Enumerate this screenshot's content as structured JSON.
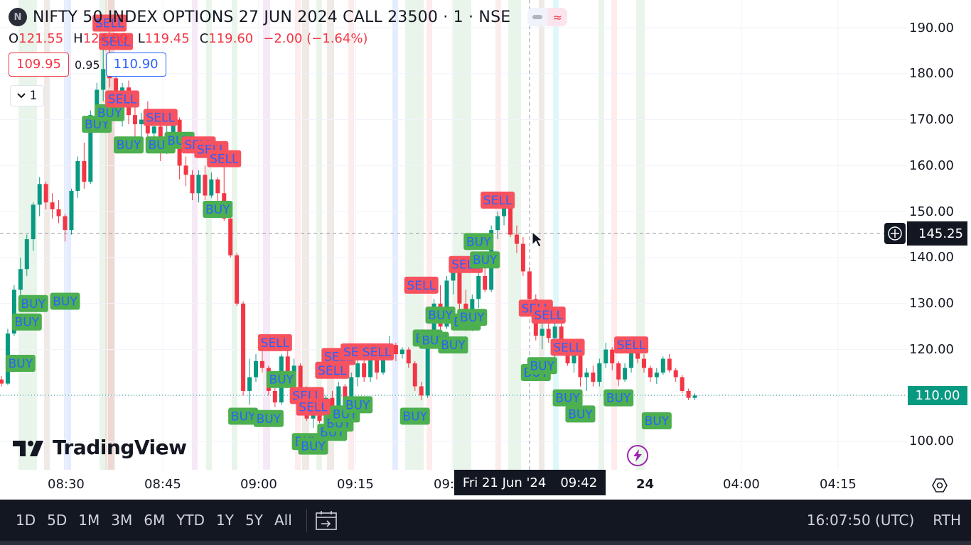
{
  "header": {
    "symbol_badge": "N",
    "title": "NIFTY 50 INDEX OPTIONS 27 JUN 2024 CALL 23500 · 1 · NSE",
    "toggle_icons": [
      "minus-icon",
      "wave-icon"
    ]
  },
  "ohlc": {
    "o_label": "O",
    "o": "121.55",
    "h_label": "H",
    "h": "124.00",
    "l_label": "L",
    "l": "119.45",
    "c_label": "C",
    "c": "119.60",
    "change": "−2.00 (−1.64%)"
  },
  "quote": {
    "sell": "109.95",
    "spread": "0.95",
    "buy": "110.90"
  },
  "collapse": {
    "label": "1",
    "icon": "chevron-down-icon"
  },
  "logo": {
    "text": "TradingView",
    "icon": "tradingview-logo-icon"
  },
  "price_axis": {
    "labels": [
      "190.00",
      "180.00",
      "170.00",
      "160.00",
      "150.00",
      "140.00",
      "130.00",
      "120.00",
      "110.00",
      "100.00"
    ],
    "crosshair_price": "145.25",
    "last_price": "110.00"
  },
  "time_axis": {
    "labels": [
      "08:30",
      "08:45",
      "09:00",
      "09:15",
      "09:",
      "24",
      "04:00",
      "04:15"
    ],
    "crosshair_date": "Fri 21 Jun '24",
    "crosshair_time": "09:42"
  },
  "ranges": [
    "1D",
    "5D",
    "1M",
    "3M",
    "6M",
    "YTD",
    "1Y",
    "5Y",
    "All"
  ],
  "status": {
    "clock": "16:07:50 (UTC)",
    "session": "RTH"
  },
  "colors": {
    "up": "#089981",
    "down": "#f23645",
    "buy_label": "#4caf50",
    "sell_label": "#f7525f",
    "label_text": "#2962ff"
  },
  "chart_data": {
    "type": "candlestick",
    "ylim": [
      94,
      196
    ],
    "signal_buy_text": "BUY",
    "signal_sell_text": "SELL",
    "candles": [
      {
        "o": 113.5,
        "h": 114.2,
        "l": 112.0,
        "c": 112.6
      },
      {
        "o": 112.6,
        "h": 124.5,
        "l": 112.3,
        "c": 123.5
      },
      {
        "o": 123.5,
        "h": 134.0,
        "l": 123.0,
        "c": 133.0
      },
      {
        "o": 133.0,
        "h": 140.0,
        "l": 130.5,
        "c": 137.5
      },
      {
        "o": 137.5,
        "h": 145.0,
        "l": 136.0,
        "c": 144.0
      },
      {
        "o": 144.0,
        "h": 152.0,
        "l": 141.5,
        "c": 151.5
      },
      {
        "o": 151.5,
        "h": 157.5,
        "l": 149.0,
        "c": 156.0
      },
      {
        "o": 156.0,
        "h": 156.5,
        "l": 150.5,
        "c": 152.0
      },
      {
        "o": 152.0,
        "h": 154.0,
        "l": 148.5,
        "c": 150.5
      },
      {
        "o": 150.5,
        "h": 152.5,
        "l": 147.5,
        "c": 149.0
      },
      {
        "o": 149.0,
        "h": 149.5,
        "l": 143.5,
        "c": 146.0
      },
      {
        "o": 146.0,
        "h": 155.0,
        "l": 145.0,
        "c": 154.5
      },
      {
        "o": 154.5,
        "h": 162.0,
        "l": 153.0,
        "c": 161.0
      },
      {
        "o": 161.0,
        "h": 165.0,
        "l": 155.0,
        "c": 156.5
      },
      {
        "o": 156.5,
        "h": 172.0,
        "l": 156.0,
        "c": 171.0
      },
      {
        "o": 171.0,
        "h": 178.0,
        "l": 169.0,
        "c": 176.5
      },
      {
        "o": 176.5,
        "h": 185.5,
        "l": 174.0,
        "c": 181.0
      },
      {
        "o": 181.0,
        "h": 190.0,
        "l": 177.0,
        "c": 179.0
      },
      {
        "o": 179.0,
        "h": 181.0,
        "l": 170.0,
        "c": 173.0
      },
      {
        "o": 173.0,
        "h": 178.0,
        "l": 168.5,
        "c": 177.0
      },
      {
        "o": 177.0,
        "h": 178.5,
        "l": 169.0,
        "c": 171.0
      },
      {
        "o": 171.0,
        "h": 173.0,
        "l": 164.0,
        "c": 169.0
      },
      {
        "o": 169.0,
        "h": 171.5,
        "l": 166.0,
        "c": 170.0
      },
      {
        "o": 170.0,
        "h": 174.0,
        "l": 165.5,
        "c": 167.0
      },
      {
        "o": 167.0,
        "h": 170.0,
        "l": 163.0,
        "c": 168.5
      },
      {
        "o": 168.5,
        "h": 172.0,
        "l": 161.0,
        "c": 163.0
      },
      {
        "o": 163.0,
        "h": 169.5,
        "l": 162.5,
        "c": 167.0
      },
      {
        "o": 167.0,
        "h": 171.0,
        "l": 165.0,
        "c": 170.0
      },
      {
        "o": 170.0,
        "h": 170.5,
        "l": 157.0,
        "c": 160.0
      },
      {
        "o": 160.0,
        "h": 162.0,
        "l": 155.5,
        "c": 158.0
      },
      {
        "o": 158.0,
        "h": 159.0,
        "l": 152.5,
        "c": 154.0
      },
      {
        "o": 154.0,
        "h": 159.0,
        "l": 152.0,
        "c": 158.0
      },
      {
        "o": 158.0,
        "h": 160.0,
        "l": 152.5,
        "c": 153.5
      },
      {
        "o": 153.5,
        "h": 158.5,
        "l": 153.0,
        "c": 157.0
      },
      {
        "o": 157.0,
        "h": 157.5,
        "l": 152.0,
        "c": 154.0
      },
      {
        "o": 154.0,
        "h": 160.0,
        "l": 148.0,
        "c": 148.5
      },
      {
        "o": 148.5,
        "h": 149.0,
        "l": 140.0,
        "c": 140.5
      },
      {
        "o": 140.5,
        "h": 141.0,
        "l": 129.5,
        "c": 130.0
      },
      {
        "o": 130.0,
        "h": 130.5,
        "l": 110.0,
        "c": 111.0
      },
      {
        "o": 111.0,
        "h": 118.0,
        "l": 108.0,
        "c": 114.0
      },
      {
        "o": 114.0,
        "h": 119.0,
        "l": 113.0,
        "c": 117.5
      },
      {
        "o": 117.5,
        "h": 120.0,
        "l": 115.0,
        "c": 116.0
      },
      {
        "o": 116.0,
        "h": 116.5,
        "l": 110.0,
        "c": 111.0
      },
      {
        "o": 111.0,
        "h": 112.0,
        "l": 107.5,
        "c": 108.5
      },
      {
        "o": 108.5,
        "h": 119.0,
        "l": 108.0,
        "c": 118.5
      },
      {
        "o": 118.5,
        "h": 121.0,
        "l": 113.0,
        "c": 114.5
      },
      {
        "o": 114.5,
        "h": 118.0,
        "l": 109.0,
        "c": 116.5
      },
      {
        "o": 116.5,
        "h": 117.0,
        "l": 110.0,
        "c": 111.5
      },
      {
        "o": 111.5,
        "h": 112.0,
        "l": 104.5,
        "c": 105.0
      },
      {
        "o": 105.0,
        "h": 110.0,
        "l": 103.0,
        "c": 109.0
      },
      {
        "o": 109.0,
        "h": 109.5,
        "l": 104.0,
        "c": 104.5
      },
      {
        "o": 104.5,
        "h": 110.0,
        "l": 104.0,
        "c": 109.5
      },
      {
        "o": 109.5,
        "h": 111.0,
        "l": 106.0,
        "c": 107.0
      },
      {
        "o": 107.0,
        "h": 113.0,
        "l": 106.5,
        "c": 112.0
      },
      {
        "o": 112.0,
        "h": 112.5,
        "l": 108.0,
        "c": 109.0
      },
      {
        "o": 109.0,
        "h": 115.0,
        "l": 108.0,
        "c": 114.0
      },
      {
        "o": 114.0,
        "h": 118.0,
        "l": 112.0,
        "c": 117.0
      },
      {
        "o": 117.0,
        "h": 121.0,
        "l": 113.0,
        "c": 114.0
      },
      {
        "o": 114.0,
        "h": 119.5,
        "l": 113.0,
        "c": 118.5
      },
      {
        "o": 118.5,
        "h": 119.0,
        "l": 113.5,
        "c": 115.0
      },
      {
        "o": 115.0,
        "h": 121.0,
        "l": 114.5,
        "c": 120.0
      },
      {
        "o": 120.0,
        "h": 123.0,
        "l": 118.5,
        "c": 121.0
      },
      {
        "o": 121.0,
        "h": 121.5,
        "l": 117.5,
        "c": 119.0
      },
      {
        "o": 119.0,
        "h": 120.5,
        "l": 118.0,
        "c": 120.0
      },
      {
        "o": 120.0,
        "h": 120.5,
        "l": 116.0,
        "c": 117.0
      },
      {
        "o": 117.0,
        "h": 117.5,
        "l": 111.0,
        "c": 112.0
      },
      {
        "o": 112.0,
        "h": 113.0,
        "l": 109.0,
        "c": 110.0
      },
      {
        "o": 110.0,
        "h": 123.0,
        "l": 109.5,
        "c": 122.5
      },
      {
        "o": 122.5,
        "h": 131.0,
        "l": 122.0,
        "c": 130.0
      },
      {
        "o": 130.0,
        "h": 134.0,
        "l": 123.0,
        "c": 125.0
      },
      {
        "o": 125.0,
        "h": 136.0,
        "l": 124.5,
        "c": 135.0
      },
      {
        "o": 135.0,
        "h": 139.0,
        "l": 132.0,
        "c": 138.0
      },
      {
        "o": 138.0,
        "h": 139.5,
        "l": 128.0,
        "c": 130.0
      },
      {
        "o": 130.0,
        "h": 133.0,
        "l": 124.0,
        "c": 125.5
      },
      {
        "o": 125.5,
        "h": 132.0,
        "l": 124.0,
        "c": 131.0
      },
      {
        "o": 131.0,
        "h": 137.0,
        "l": 129.0,
        "c": 136.0
      },
      {
        "o": 136.0,
        "h": 140.0,
        "l": 132.5,
        "c": 133.0
      },
      {
        "o": 133.0,
        "h": 147.0,
        "l": 132.5,
        "c": 146.0
      },
      {
        "o": 146.0,
        "h": 150.0,
        "l": 144.0,
        "c": 149.0
      },
      {
        "o": 149.0,
        "h": 153.5,
        "l": 147.0,
        "c": 152.0
      },
      {
        "o": 152.0,
        "h": 152.5,
        "l": 144.5,
        "c": 145.0
      },
      {
        "o": 145.0,
        "h": 147.0,
        "l": 141.0,
        "c": 143.0
      },
      {
        "o": 143.0,
        "h": 144.5,
        "l": 136.0,
        "c": 137.0
      },
      {
        "o": 137.0,
        "h": 138.0,
        "l": 130.5,
        "c": 131.0
      },
      {
        "o": 131.0,
        "h": 132.0,
        "l": 122.0,
        "c": 123.0
      },
      {
        "o": 123.0,
        "h": 126.0,
        "l": 120.0,
        "c": 124.5
      },
      {
        "o": 124.5,
        "h": 127.0,
        "l": 121.5,
        "c": 122.5
      },
      {
        "o": 122.5,
        "h": 126.0,
        "l": 118.0,
        "c": 125.0
      },
      {
        "o": 125.0,
        "h": 126.0,
        "l": 120.0,
        "c": 121.0
      },
      {
        "o": 121.0,
        "h": 121.5,
        "l": 116.5,
        "c": 117.0
      },
      {
        "o": 117.0,
        "h": 120.5,
        "l": 115.0,
        "c": 119.0
      },
      {
        "o": 119.0,
        "h": 119.5,
        "l": 112.0,
        "c": 114.0
      },
      {
        "o": 114.0,
        "h": 116.0,
        "l": 111.0,
        "c": 115.0
      },
      {
        "o": 115.0,
        "h": 116.5,
        "l": 112.0,
        "c": 113.0
      },
      {
        "o": 113.0,
        "h": 118.0,
        "l": 112.0,
        "c": 117.0
      },
      {
        "o": 117.0,
        "h": 121.5,
        "l": 116.0,
        "c": 120.0
      },
      {
        "o": 120.0,
        "h": 120.5,
        "l": 115.5,
        "c": 117.0
      },
      {
        "o": 117.0,
        "h": 117.5,
        "l": 112.0,
        "c": 113.5
      },
      {
        "o": 113.5,
        "h": 117.0,
        "l": 113.0,
        "c": 116.0
      },
      {
        "o": 116.0,
        "h": 120.0,
        "l": 115.0,
        "c": 119.5
      },
      {
        "o": 119.5,
        "h": 121.0,
        "l": 117.0,
        "c": 118.0
      },
      {
        "o": 118.0,
        "h": 119.0,
        "l": 115.0,
        "c": 116.0
      },
      {
        "o": 116.0,
        "h": 116.5,
        "l": 113.0,
        "c": 114.0
      },
      {
        "o": 114.0,
        "h": 116.0,
        "l": 112.5,
        "c": 115.0
      },
      {
        "o": 115.0,
        "h": 118.5,
        "l": 114.5,
        "c": 118.0
      },
      {
        "o": 118.0,
        "h": 119.0,
        "l": 115.0,
        "c": 115.5
      },
      {
        "o": 115.5,
        "h": 116.0,
        "l": 113.0,
        "c": 114.0
      },
      {
        "o": 114.0,
        "h": 114.5,
        "l": 110.5,
        "c": 111.0
      },
      {
        "o": 111.0,
        "h": 111.5,
        "l": 109.0,
        "c": 109.5
      },
      {
        "o": 109.5,
        "h": 110.5,
        "l": 109.0,
        "c": 110.0
      }
    ],
    "signals": [
      {
        "t": "BUY",
        "i": 3,
        "p": 117.0
      },
      {
        "t": "BUY",
        "i": 4,
        "p": 126.0
      },
      {
        "t": "BUY",
        "i": 5,
        "p": 130.0
      },
      {
        "t": "BUY",
        "i": 10,
        "p": 130.5
      },
      {
        "t": "BUY",
        "i": 15,
        "p": 169.0
      },
      {
        "t": "BUY",
        "i": 17,
        "p": 171.5
      },
      {
        "t": "SELL",
        "i": 17,
        "p": 191.0
      },
      {
        "t": "SELL",
        "i": 18,
        "p": 187.0
      },
      {
        "t": "SELL",
        "i": 19,
        "p": 174.5
      },
      {
        "t": "SELL",
        "i": 25,
        "p": 170.5
      },
      {
        "t": "BUY",
        "i": 20,
        "p": 164.5
      },
      {
        "t": "BUY",
        "i": 25,
        "p": 164.5
      },
      {
        "t": "BUY",
        "i": 28,
        "p": 165.5
      },
      {
        "t": "SELL",
        "i": 31,
        "p": 164.5
      },
      {
        "t": "SELL",
        "i": 33,
        "p": 163.5
      },
      {
        "t": "SELL",
        "i": 35,
        "p": 161.5
      },
      {
        "t": "BUY",
        "i": 34,
        "p": 150.5
      },
      {
        "t": "SELL",
        "i": 43,
        "p": 121.5
      },
      {
        "t": "BUY",
        "i": 38,
        "p": 105.5
      },
      {
        "t": "BUY",
        "i": 42,
        "p": 105.0
      },
      {
        "t": "BUY",
        "i": 44,
        "p": 113.5
      },
      {
        "t": "SELL",
        "i": 48,
        "p": 110.0
      },
      {
        "t": "SELL",
        "i": 49,
        "p": 107.5
      },
      {
        "t": "BUY",
        "i": 48,
        "p": 100.0
      },
      {
        "t": "BUY",
        "i": 49,
        "p": 99.0
      },
      {
        "t": "BUY",
        "i": 52,
        "p": 102.0
      },
      {
        "t": "BUY",
        "i": 53,
        "p": 104.0
      },
      {
        "t": "BUY",
        "i": 54,
        "p": 106.0
      },
      {
        "t": "BUY",
        "i": 56,
        "p": 108.0
      },
      {
        "t": "SELL",
        "i": 52,
        "p": 115.5
      },
      {
        "t": "SELL",
        "i": 53,
        "p": 118.5
      },
      {
        "t": "SELL",
        "i": 56,
        "p": 119.5
      },
      {
        "t": "SELL",
        "i": 59,
        "p": 119.5
      },
      {
        "t": "BUY",
        "i": 65,
        "p": 105.5
      },
      {
        "t": "SELL",
        "i": 66,
        "p": 134.0
      },
      {
        "t": "BUY",
        "i": 67,
        "p": 122.5
      },
      {
        "t": "BUY",
        "i": 68,
        "p": 122.0
      },
      {
        "t": "BUY",
        "i": 69,
        "p": 127.5
      },
      {
        "t": "BUY",
        "i": 71,
        "p": 121.0
      },
      {
        "t": "SELL",
        "i": 73,
        "p": 138.5
      },
      {
        "t": "BUY",
        "i": 73,
        "p": 126.0
      },
      {
        "t": "BUY",
        "i": 74,
        "p": 127.0
      },
      {
        "t": "BUY",
        "i": 76,
        "p": 139.5
      },
      {
        "t": "BUY",
        "i": 75,
        "p": 143.5
      },
      {
        "t": "SELL",
        "i": 78,
        "p": 152.5
      },
      {
        "t": "SELL",
        "i": 84,
        "p": 129.0
      },
      {
        "t": "SELL",
        "i": 86,
        "p": 127.5
      },
      {
        "t": "BUY",
        "i": 84,
        "p": 115.0
      },
      {
        "t": "BUY",
        "i": 85,
        "p": 116.5
      },
      {
        "t": "SELL",
        "i": 89,
        "p": 120.5
      },
      {
        "t": "BUY",
        "i": 89,
        "p": 109.5
      },
      {
        "t": "BUY",
        "i": 91,
        "p": 106.0
      },
      {
        "t": "BUY",
        "i": 97,
        "p": 109.5
      },
      {
        "t": "SELL",
        "i": 99,
        "p": 121.0
      },
      {
        "t": "BUY",
        "i": 103,
        "p": 104.5
      }
    ]
  }
}
